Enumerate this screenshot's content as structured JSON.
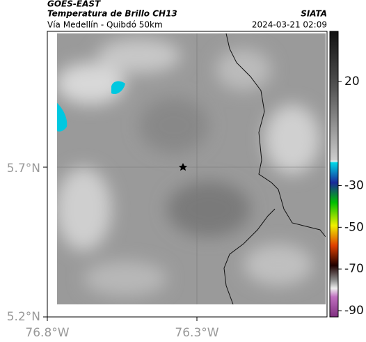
{
  "header": {
    "satellite": "GOES-EAST",
    "title": "Temperatura de Brillo CH13",
    "route": "Vía Medellín - Quibdó 50km",
    "source": "SIATA",
    "timestamp": "2024-03-21 02:09"
  },
  "axes": {
    "latitude_labels": [
      "5.7°N",
      "5.2°N"
    ],
    "longitude_labels": [
      "76.8°W",
      "76.3°W"
    ]
  },
  "colorbar": {
    "range": [
      -93,
      44
    ],
    "ticks": [
      20,
      -30,
      -50,
      -70,
      -90
    ]
  }
}
